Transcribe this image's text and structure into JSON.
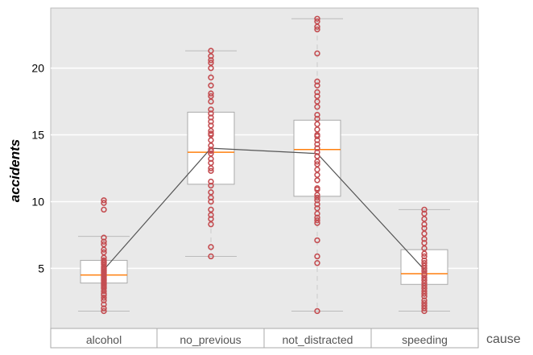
{
  "chart_data": {
    "type": "box",
    "ylabel": "accidents",
    "xlabel": "cause",
    "categories": [
      "alcohol",
      "no_previous",
      "not_distracted",
      "speeding"
    ],
    "y_ticks": [
      5,
      10,
      15,
      20
    ],
    "ylim": [
      0.5,
      24.5
    ],
    "grid": "horizontal",
    "colors": {
      "panel": "#e9e9e9",
      "grid": "#ffffff",
      "box_fill": "#ffffff",
      "box_edge": "#aaaaaa",
      "median": "#ff7f0e",
      "points": "#c44e52",
      "mean_line": "#555555"
    },
    "boxes": [
      {
        "category": "alcohol",
        "whislo": 1.8,
        "q1": 3.9,
        "med": 4.5,
        "q3": 5.6,
        "whishi": 7.4,
        "fliers": [
          9.4,
          9.9,
          10.1
        ],
        "mean": 4.9
      },
      {
        "category": "no_previous",
        "whislo": 5.9,
        "q1": 11.3,
        "med": 13.7,
        "q3": 16.7,
        "whishi": 21.3,
        "fliers": [],
        "mean": 14.0
      },
      {
        "category": "not_distracted",
        "whislo": 1.8,
        "q1": 10.4,
        "med": 13.9,
        "q3": 16.1,
        "whishi": 23.7,
        "fliers": [],
        "mean": 13.6
      },
      {
        "category": "speeding",
        "whislo": 1.8,
        "q1": 3.8,
        "med": 4.6,
        "q3": 6.4,
        "whishi": 9.4,
        "fliers": [],
        "mean": 4.9
      }
    ],
    "points": [
      [
        1.8,
        2.0,
        2.3,
        2.6,
        2.8,
        3.0,
        3.1,
        3.3,
        3.5,
        3.6,
        3.7,
        3.8,
        3.9,
        4.0,
        4.1,
        4.2,
        4.3,
        4.4,
        4.5,
        4.5,
        4.6,
        4.7,
        4.8,
        4.9,
        5.0,
        5.1,
        5.3,
        5.4,
        5.5,
        5.6,
        5.8,
        6.2,
        6.4,
        6.8,
        7.0,
        7.3,
        9.4,
        9.9,
        10.1
      ],
      [
        5.9,
        6.6,
        8.3,
        8.7,
        9.0,
        9.4,
        10.0,
        10.3,
        10.7,
        11.2,
        11.5,
        12.3,
        12.5,
        12.9,
        13.2,
        13.6,
        13.8,
        13.9,
        14.2,
        14.6,
        15.0,
        15.1,
        15.3,
        15.7,
        16.0,
        16.3,
        16.6,
        16.9,
        17.5,
        17.9,
        18.1,
        18.7,
        19.3,
        20.0,
        20.4,
        20.6,
        20.9,
        21.3
      ],
      [
        1.8,
        5.4,
        5.9,
        7.1,
        8.4,
        8.6,
        8.8,
        9.1,
        9.5,
        9.8,
        10.1,
        10.3,
        10.5,
        10.9,
        11.0,
        11.6,
        12.0,
        12.4,
        12.8,
        13.0,
        13.4,
        13.7,
        14.0,
        14.3,
        14.6,
        14.9,
        15.0,
        15.4,
        15.8,
        16.2,
        16.5,
        17.1,
        17.5,
        17.9,
        18.2,
        18.7,
        19.0,
        21.1,
        22.9,
        23.1,
        23.5,
        23.7
      ],
      [
        1.8,
        2.0,
        2.2,
        2.4,
        2.6,
        2.9,
        3.1,
        3.3,
        3.5,
        3.7,
        3.9,
        4.1,
        4.3,
        4.5,
        4.6,
        4.8,
        5.0,
        5.2,
        5.4,
        5.6,
        5.9,
        6.1,
        6.5,
        6.9,
        7.2,
        7.6,
        8.0,
        8.3,
        8.7,
        9.1,
        9.4
      ]
    ]
  }
}
